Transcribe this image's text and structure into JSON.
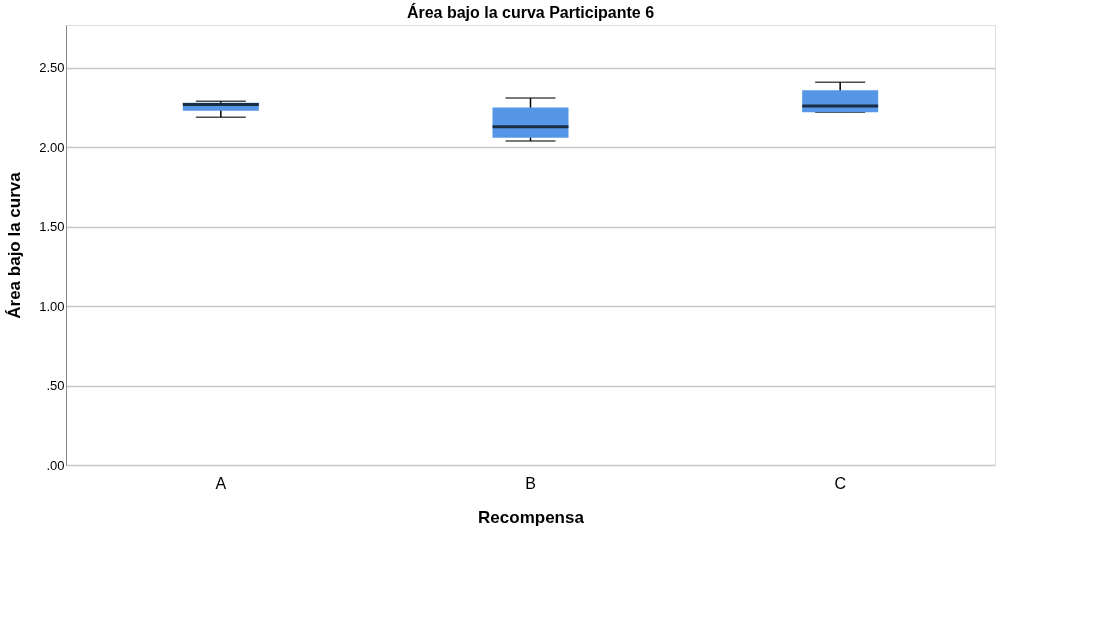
{
  "chart_data": {
    "type": "box",
    "title": "Área bajo la curva Participante 6",
    "xlabel": "Recompensa",
    "ylabel": "Área bajo la curva",
    "categories": [
      "A",
      "B",
      "C"
    ],
    "color": "#5596e6",
    "boxes": [
      {
        "low": 2.19,
        "q1": 2.23,
        "median": 2.27,
        "q3": 2.28,
        "high": 2.29
      },
      {
        "low": 2.04,
        "q1": 2.06,
        "median": 2.13,
        "q3": 2.25,
        "high": 2.31
      },
      {
        "low": 2.22,
        "q1": 2.22,
        "median": 2.26,
        "q3": 2.36,
        "high": 2.41
      }
    ],
    "ylim": [
      0,
      2.77
    ],
    "yticks": [
      {
        "value": 0,
        "label": ".00"
      },
      {
        "value": 0.5,
        "label": ".50"
      },
      {
        "value": 1,
        "label": "1.00"
      },
      {
        "value": 1.5,
        "label": "1.50"
      },
      {
        "value": 2,
        "label": "2.00"
      },
      {
        "value": 2.5,
        "label": "2.50"
      }
    ],
    "grid": "y"
  }
}
